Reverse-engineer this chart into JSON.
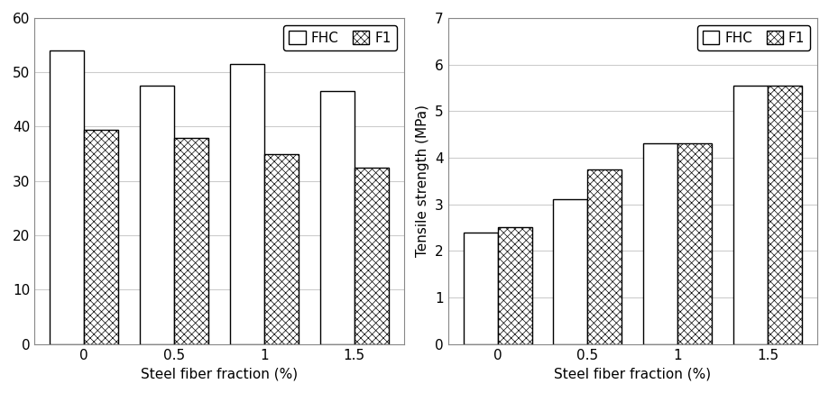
{
  "left_chart": {
    "title": "",
    "ylabel": "",
    "xlabel": "Steel fiber fraction (%)",
    "categories": [
      "0",
      "0.5",
      "1",
      "1.5"
    ],
    "fhc_values": [
      54.0,
      47.5,
      51.5,
      46.5
    ],
    "fi_values": [
      39.5,
      38.0,
      35.0,
      32.5
    ],
    "ylim": [
      0,
      60
    ],
    "yticks": [
      0,
      10,
      20,
      30,
      40,
      50,
      60
    ]
  },
  "right_chart": {
    "title": "",
    "ylabel": "Tensile strength (MPa)",
    "xlabel": "Steel fiber fraction (%)",
    "categories": [
      "0",
      "0.5",
      "1",
      "1.5"
    ],
    "fhc_values": [
      2.4,
      3.1,
      4.3,
      5.55
    ],
    "fi_values": [
      2.5,
      3.75,
      4.3,
      5.55
    ],
    "ylim": [
      0,
      7
    ],
    "yticks": [
      0,
      1,
      2,
      3,
      4,
      5,
      6,
      7
    ]
  },
  "bar_width": 0.38,
  "fhc_color": "#ffffff",
  "fi_color": "#ffffff",
  "fi_hatch": "xxxx",
  "legend_labels": [
    "FHC",
    "F1"
  ],
  "edge_color": "#000000",
  "background_color": "#ffffff",
  "grid_color": "#cccccc",
  "fontsize": 11,
  "tick_fontsize": 11,
  "spine_color": "#888888"
}
